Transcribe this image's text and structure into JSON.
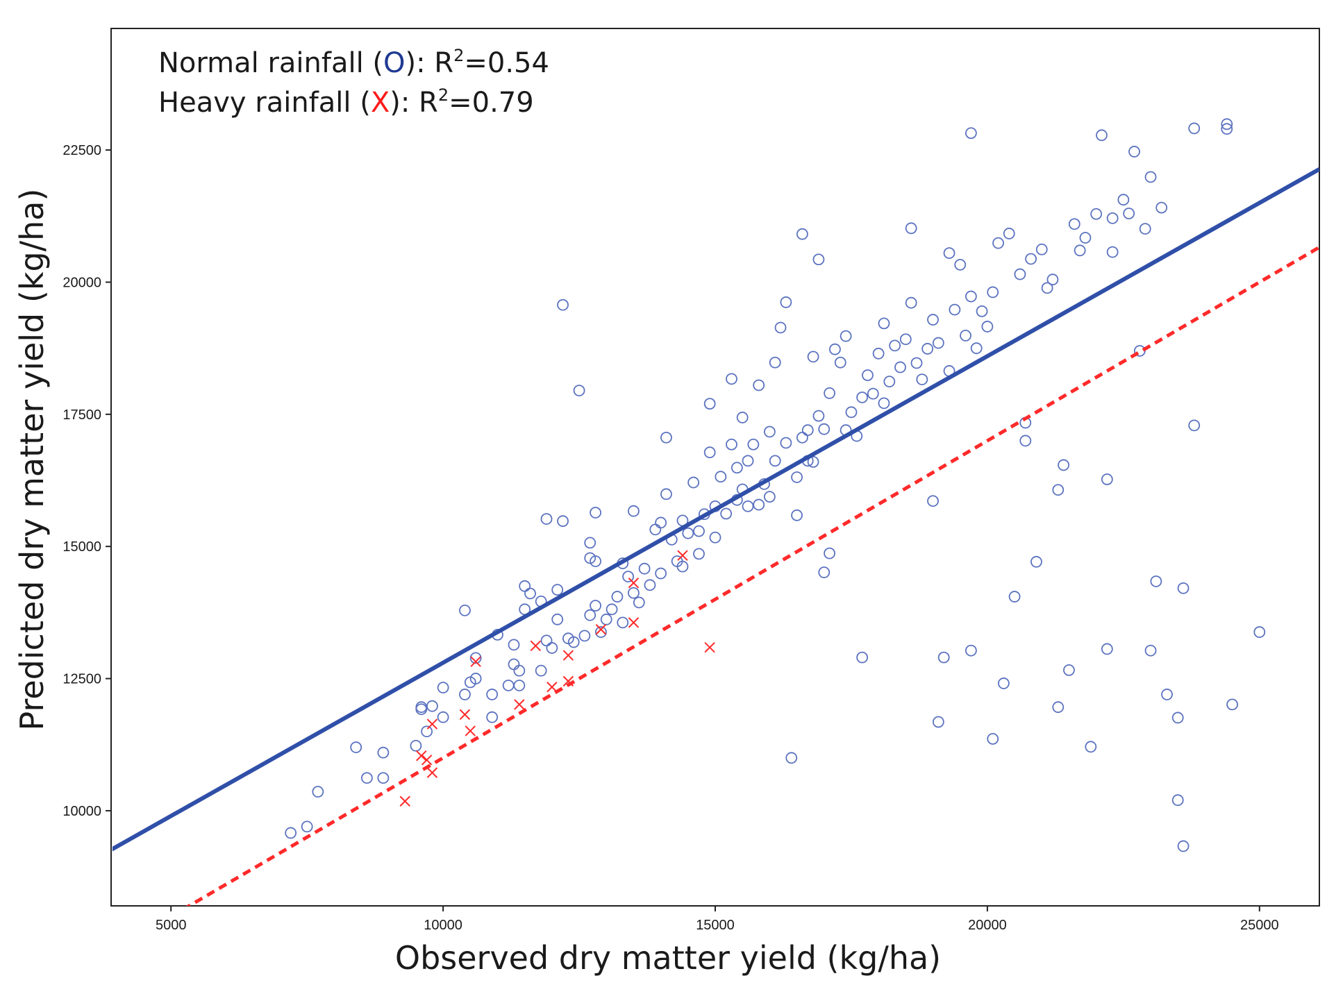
{
  "chart_data": {
    "type": "scatter",
    "xlabel": "Observed dry matter yield (kg/ha)",
    "ylabel": "Predicted dry matter yield (kg/ha)",
    "xlim": [
      3900,
      26100
    ],
    "ylim": [
      8200,
      24800
    ],
    "xticks": [
      "5000",
      "10000",
      "15000",
      "20000",
      "25000"
    ],
    "yticks": [
      "10000",
      "12500",
      "15000",
      "17500",
      "20000",
      "22500"
    ],
    "legend": {
      "normal": {
        "label_pre": "Normal rainfall (",
        "marker": "O",
        "label_post": "): R",
        "sup": "2",
        "r2": "=0.54"
      },
      "heavy": {
        "label_pre": "Heavy rainfall (",
        "marker": "X",
        "label_post": "): R",
        "sup": "2",
        "r2": "=0.79"
      }
    },
    "colors": {
      "normal": "#2f4fa8",
      "normal_marker": "#5b72c0",
      "heavy": "#ff2a2a",
      "legend_o": "#1f3a93",
      "legend_x": "#ff1a1a"
    },
    "series": [
      {
        "name": "Normal rainfall",
        "marker": "circle",
        "fit": {
          "slope": 0.58,
          "intercept": 7000,
          "style": "solid"
        },
        "points": [
          [
            7200,
            9580
          ],
          [
            7500,
            9700
          ],
          [
            7700,
            10360
          ],
          [
            8400,
            11200
          ],
          [
            8600,
            10620
          ],
          [
            8900,
            11100
          ],
          [
            8900,
            10620
          ],
          [
            9500,
            11230
          ],
          [
            9600,
            11960
          ],
          [
            9600,
            11920
          ],
          [
            9700,
            11500
          ],
          [
            9800,
            11980
          ],
          [
            10000,
            12330
          ],
          [
            10000,
            11770
          ],
          [
            10400,
            12200
          ],
          [
            10400,
            13790
          ],
          [
            10500,
            12430
          ],
          [
            10600,
            12500
          ],
          [
            10600,
            12890
          ],
          [
            10900,
            12200
          ],
          [
            10900,
            11770
          ],
          [
            11000,
            13330
          ],
          [
            11200,
            12370
          ],
          [
            11300,
            12770
          ],
          [
            11300,
            13140
          ],
          [
            11400,
            12370
          ],
          [
            11400,
            12650
          ],
          [
            11500,
            13810
          ],
          [
            11500,
            14250
          ],
          [
            11600,
            14110
          ],
          [
            11800,
            13960
          ],
          [
            11800,
            12650
          ],
          [
            11900,
            15520
          ],
          [
            11900,
            13220
          ],
          [
            12000,
            13080
          ],
          [
            12100,
            14180
          ],
          [
            12100,
            13620
          ],
          [
            12200,
            15480
          ],
          [
            12200,
            19570
          ],
          [
            12300,
            13260
          ],
          [
            12400,
            13190
          ],
          [
            12500,
            17950
          ],
          [
            12600,
            13310
          ],
          [
            12700,
            13700
          ],
          [
            12700,
            14780
          ],
          [
            12700,
            15070
          ],
          [
            12800,
            15640
          ],
          [
            12800,
            13880
          ],
          [
            12800,
            14720
          ],
          [
            12900,
            13380
          ],
          [
            13000,
            13620
          ],
          [
            13100,
            13810
          ],
          [
            13200,
            14050
          ],
          [
            13300,
            13560
          ],
          [
            13300,
            14680
          ],
          [
            13400,
            14430
          ],
          [
            13500,
            14120
          ],
          [
            13500,
            15670
          ],
          [
            13600,
            13940
          ],
          [
            13700,
            14580
          ],
          [
            13800,
            14270
          ],
          [
            13900,
            15320
          ],
          [
            14000,
            15450
          ],
          [
            14000,
            14490
          ],
          [
            14100,
            17060
          ],
          [
            14100,
            15990
          ],
          [
            14200,
            15130
          ],
          [
            14300,
            14720
          ],
          [
            14400,
            15490
          ],
          [
            14400,
            14620
          ],
          [
            14500,
            15250
          ],
          [
            14600,
            16210
          ],
          [
            14700,
            15290
          ],
          [
            14700,
            14860
          ],
          [
            14800,
            15610
          ],
          [
            14900,
            16780
          ],
          [
            14900,
            17700
          ],
          [
            15000,
            15760
          ],
          [
            15000,
            15170
          ],
          [
            15100,
            16320
          ],
          [
            15200,
            15620
          ],
          [
            15300,
            16930
          ],
          [
            15300,
            18170
          ],
          [
            15400,
            15880
          ],
          [
            15400,
            16490
          ],
          [
            15500,
            17440
          ],
          [
            15500,
            16080
          ],
          [
            15600,
            16620
          ],
          [
            15600,
            15760
          ],
          [
            15700,
            16930
          ],
          [
            15800,
            18050
          ],
          [
            15800,
            15790
          ],
          [
            15900,
            16180
          ],
          [
            16000,
            17170
          ],
          [
            16000,
            15940
          ],
          [
            16100,
            16620
          ],
          [
            16100,
            18480
          ],
          [
            16200,
            19140
          ],
          [
            16300,
            16960
          ],
          [
            16300,
            19620
          ],
          [
            16400,
            11000
          ],
          [
            16500,
            15590
          ],
          [
            16500,
            16310
          ],
          [
            16600,
            17060
          ],
          [
            16600,
            20910
          ],
          [
            16700,
            16620
          ],
          [
            16700,
            17200
          ],
          [
            16800,
            18590
          ],
          [
            16800,
            16600
          ],
          [
            16900,
            20430
          ],
          [
            16900,
            17470
          ],
          [
            17000,
            14510
          ],
          [
            17000,
            17220
          ],
          [
            17100,
            14870
          ],
          [
            17100,
            17900
          ],
          [
            17200,
            18730
          ],
          [
            17300,
            18480
          ],
          [
            17400,
            17200
          ],
          [
            17400,
            18980
          ],
          [
            17500,
            17540
          ],
          [
            17600,
            17090
          ],
          [
            17700,
            12900
          ],
          [
            17700,
            17820
          ],
          [
            17800,
            18240
          ],
          [
            17900,
            17890
          ],
          [
            18000,
            18650
          ],
          [
            18100,
            17710
          ],
          [
            18100,
            19220
          ],
          [
            18200,
            18120
          ],
          [
            18300,
            18800
          ],
          [
            18400,
            18390
          ],
          [
            18500,
            18920
          ],
          [
            18600,
            19610
          ],
          [
            18600,
            21020
          ],
          [
            18700,
            18470
          ],
          [
            18800,
            18160
          ],
          [
            18900,
            18740
          ],
          [
            19000,
            15860
          ],
          [
            19000,
            19290
          ],
          [
            19100,
            11680
          ],
          [
            19100,
            18850
          ],
          [
            19200,
            12900
          ],
          [
            19300,
            18320
          ],
          [
            19300,
            20550
          ],
          [
            19400,
            19480
          ],
          [
            19500,
            20330
          ],
          [
            19600,
            18990
          ],
          [
            19700,
            13030
          ],
          [
            19700,
            19730
          ],
          [
            19700,
            22820
          ],
          [
            19800,
            18750
          ],
          [
            19900,
            19450
          ],
          [
            20000,
            19160
          ],
          [
            20100,
            19810
          ],
          [
            20100,
            11360
          ],
          [
            20200,
            20740
          ],
          [
            20300,
            12410
          ],
          [
            20400,
            20920
          ],
          [
            20500,
            14050
          ],
          [
            20600,
            20150
          ],
          [
            20700,
            17340
          ],
          [
            20700,
            17000
          ],
          [
            20800,
            20440
          ],
          [
            20900,
            14710
          ],
          [
            21000,
            20620
          ],
          [
            21100,
            19890
          ],
          [
            21200,
            20050
          ],
          [
            21300,
            16070
          ],
          [
            21300,
            11960
          ],
          [
            21400,
            16540
          ],
          [
            21500,
            12660
          ],
          [
            21600,
            21100
          ],
          [
            21700,
            20600
          ],
          [
            21800,
            20840
          ],
          [
            21900,
            11210
          ],
          [
            22000,
            21290
          ],
          [
            22100,
            22780
          ],
          [
            22200,
            13060
          ],
          [
            22200,
            16270
          ],
          [
            22300,
            20570
          ],
          [
            22300,
            21210
          ],
          [
            22500,
            21560
          ],
          [
            22600,
            21300
          ],
          [
            22700,
            22470
          ],
          [
            22800,
            18700
          ],
          [
            22900,
            21010
          ],
          [
            23000,
            21990
          ],
          [
            23000,
            13030
          ],
          [
            23100,
            14340
          ],
          [
            23200,
            21410
          ],
          [
            23300,
            12200
          ],
          [
            23500,
            10200
          ],
          [
            23500,
            11760
          ],
          [
            23600,
            14210
          ],
          [
            23600,
            9330
          ],
          [
            23800,
            17290
          ],
          [
            23800,
            22910
          ],
          [
            24400,
            22990
          ],
          [
            24400,
            22900
          ],
          [
            24500,
            12010
          ],
          [
            25000,
            13380
          ]
        ]
      },
      {
        "name": "Heavy rainfall",
        "marker": "x",
        "fit": {
          "slope": 0.6,
          "intercept": 5000,
          "style": "dashed"
        },
        "points": [
          [
            9300,
            10180
          ],
          [
            9600,
            11040
          ],
          [
            9700,
            10960
          ],
          [
            9800,
            10720
          ],
          [
            9800,
            11640
          ],
          [
            10400,
            11820
          ],
          [
            10500,
            11510
          ],
          [
            10600,
            12820
          ],
          [
            11400,
            12010
          ],
          [
            11700,
            13120
          ],
          [
            12000,
            12340
          ],
          [
            12300,
            12450
          ],
          [
            12300,
            12940
          ],
          [
            12900,
            13430
          ],
          [
            13500,
            13560
          ],
          [
            13500,
            14310
          ],
          [
            14400,
            14830
          ],
          [
            14900,
            13090
          ]
        ]
      }
    ]
  }
}
